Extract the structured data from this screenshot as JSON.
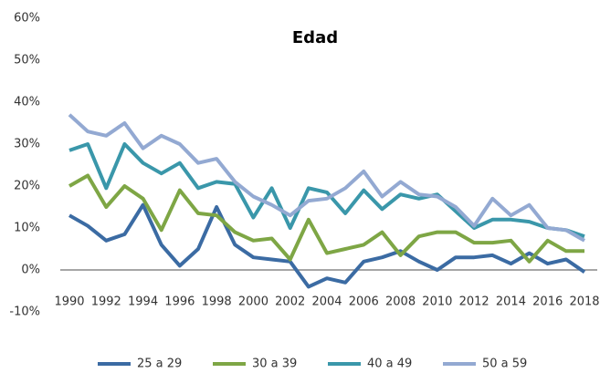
{
  "chart_data": {
    "type": "line",
    "title": "Edad",
    "x": [
      1990,
      1991,
      1992,
      1993,
      1994,
      1995,
      1996,
      1997,
      1998,
      1999,
      2000,
      2001,
      2002,
      2003,
      2004,
      2005,
      2006,
      2007,
      2008,
      2009,
      2010,
      2011,
      2012,
      2013,
      2014,
      2015,
      2016,
      2017,
      2018
    ],
    "series": [
      {
        "name": "25 a 29",
        "color": "#3b6ba3",
        "values": [
          13,
          10.5,
          7,
          8.5,
          15.5,
          6,
          1,
          5,
          15,
          6,
          3,
          2.5,
          2,
          -4,
          -2,
          -3,
          2,
          3,
          4.5,
          2,
          0,
          3,
          3,
          3.5,
          1.5,
          4,
          1.5,
          2.5,
          -0.5
        ]
      },
      {
        "name": "30 a 39",
        "color": "#7ea645",
        "values": [
          20,
          22.5,
          15,
          20,
          17,
          9.5,
          19,
          13.5,
          13,
          9,
          7,
          7.5,
          2.5,
          12,
          4,
          5,
          6,
          9,
          3.5,
          8,
          9,
          9,
          6.5,
          6.5,
          7,
          2,
          7,
          4.5,
          4.5
        ]
      },
      {
        "name": "40 a 49",
        "color": "#3a97aa",
        "values": [
          28.5,
          30,
          19.5,
          30,
          25.5,
          23,
          25.5,
          19.5,
          21,
          20.5,
          12.5,
          19.5,
          10,
          19.5,
          18.5,
          13.5,
          19,
          14.5,
          18,
          17,
          18,
          14,
          10,
          12,
          12,
          11.5,
          10,
          9.5,
          8
        ]
      },
      {
        "name": "50 a 59",
        "color": "#93a9d2",
        "values": [
          37,
          33,
          32,
          35,
          29,
          32,
          30,
          25.5,
          26.5,
          21,
          17.5,
          15.5,
          13,
          16.5,
          17,
          19.5,
          23.5,
          17.5,
          21,
          18,
          17.5,
          15,
          10.5,
          17,
          13,
          15.5,
          10,
          9.5,
          7
        ]
      }
    ],
    "xlim": [
      1990,
      2018
    ],
    "xticks": [
      1990,
      1992,
      1994,
      1996,
      1998,
      2000,
      2002,
      2004,
      2006,
      2008,
      2010,
      2012,
      2014,
      2016,
      2018
    ],
    "ylim": [
      -10,
      60
    ],
    "yticks": [
      {
        "value": -10,
        "label": "-10%"
      },
      {
        "value": 0,
        "label": "0%"
      },
      {
        "value": 10,
        "label": "10%"
      },
      {
        "value": 20,
        "label": "20%"
      },
      {
        "value": 30,
        "label": "30%"
      },
      {
        "value": 40,
        "label": "40%"
      },
      {
        "value": 50,
        "label": "50%"
      },
      {
        "value": 60,
        "label": "60%"
      }
    ],
    "grid": false,
    "legend": "bottom"
  }
}
